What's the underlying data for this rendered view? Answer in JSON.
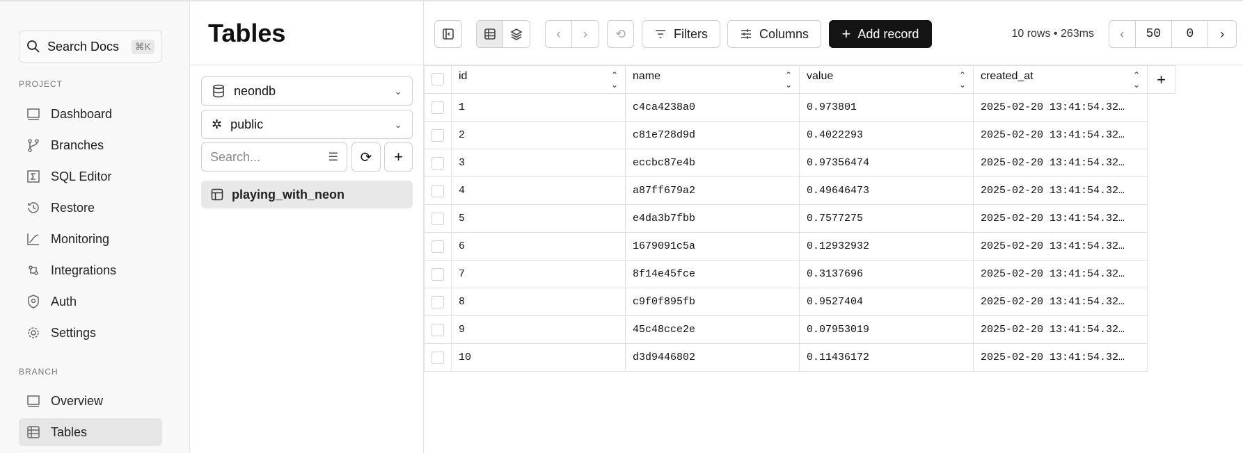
{
  "sidebar": {
    "search_label": "Search Docs",
    "search_shortcut": "⌘K",
    "project_label": "PROJECT",
    "project_items": [
      "Dashboard",
      "Branches",
      "SQL Editor",
      "Restore",
      "Monitoring",
      "Integrations",
      "Auth",
      "Settings"
    ],
    "branch_label": "BRANCH",
    "branch_items": [
      "Overview",
      "Tables"
    ],
    "active": "Tables"
  },
  "panel": {
    "title": "Tables",
    "database": "neondb",
    "schema": "public",
    "search_placeholder": "Search...",
    "tables": [
      "playing_with_neon"
    ]
  },
  "toolbar": {
    "filters": "Filters",
    "columns": "Columns",
    "add_record": "Add record",
    "status": "10 rows • 263ms",
    "limit": "50",
    "offset": "0"
  },
  "grid": {
    "columns": [
      "id",
      "name",
      "value",
      "created_at"
    ],
    "rows": [
      [
        "1",
        "c4ca4238a0",
        "0.973801",
        "2025-02-20 13:41:54.32…"
      ],
      [
        "2",
        "c81e728d9d",
        "0.4022293",
        "2025-02-20 13:41:54.32…"
      ],
      [
        "3",
        "eccbc87e4b",
        "0.97356474",
        "2025-02-20 13:41:54.32…"
      ],
      [
        "4",
        "a87ff679a2",
        "0.49646473",
        "2025-02-20 13:41:54.32…"
      ],
      [
        "5",
        "e4da3b7fbb",
        "0.7577275",
        "2025-02-20 13:41:54.32…"
      ],
      [
        "6",
        "1679091c5a",
        "0.12932932",
        "2025-02-20 13:41:54.32…"
      ],
      [
        "7",
        "8f14e45fce",
        "0.3137696",
        "2025-02-20 13:41:54.32…"
      ],
      [
        "8",
        "c9f0f895fb",
        "0.9527404",
        "2025-02-20 13:41:54.32…"
      ],
      [
        "9",
        "45c48cce2e",
        "0.07953019",
        "2025-02-20 13:41:54.32…"
      ],
      [
        "10",
        "d3d9446802",
        "0.11436172",
        "2025-02-20 13:41:54.32…"
      ]
    ]
  }
}
